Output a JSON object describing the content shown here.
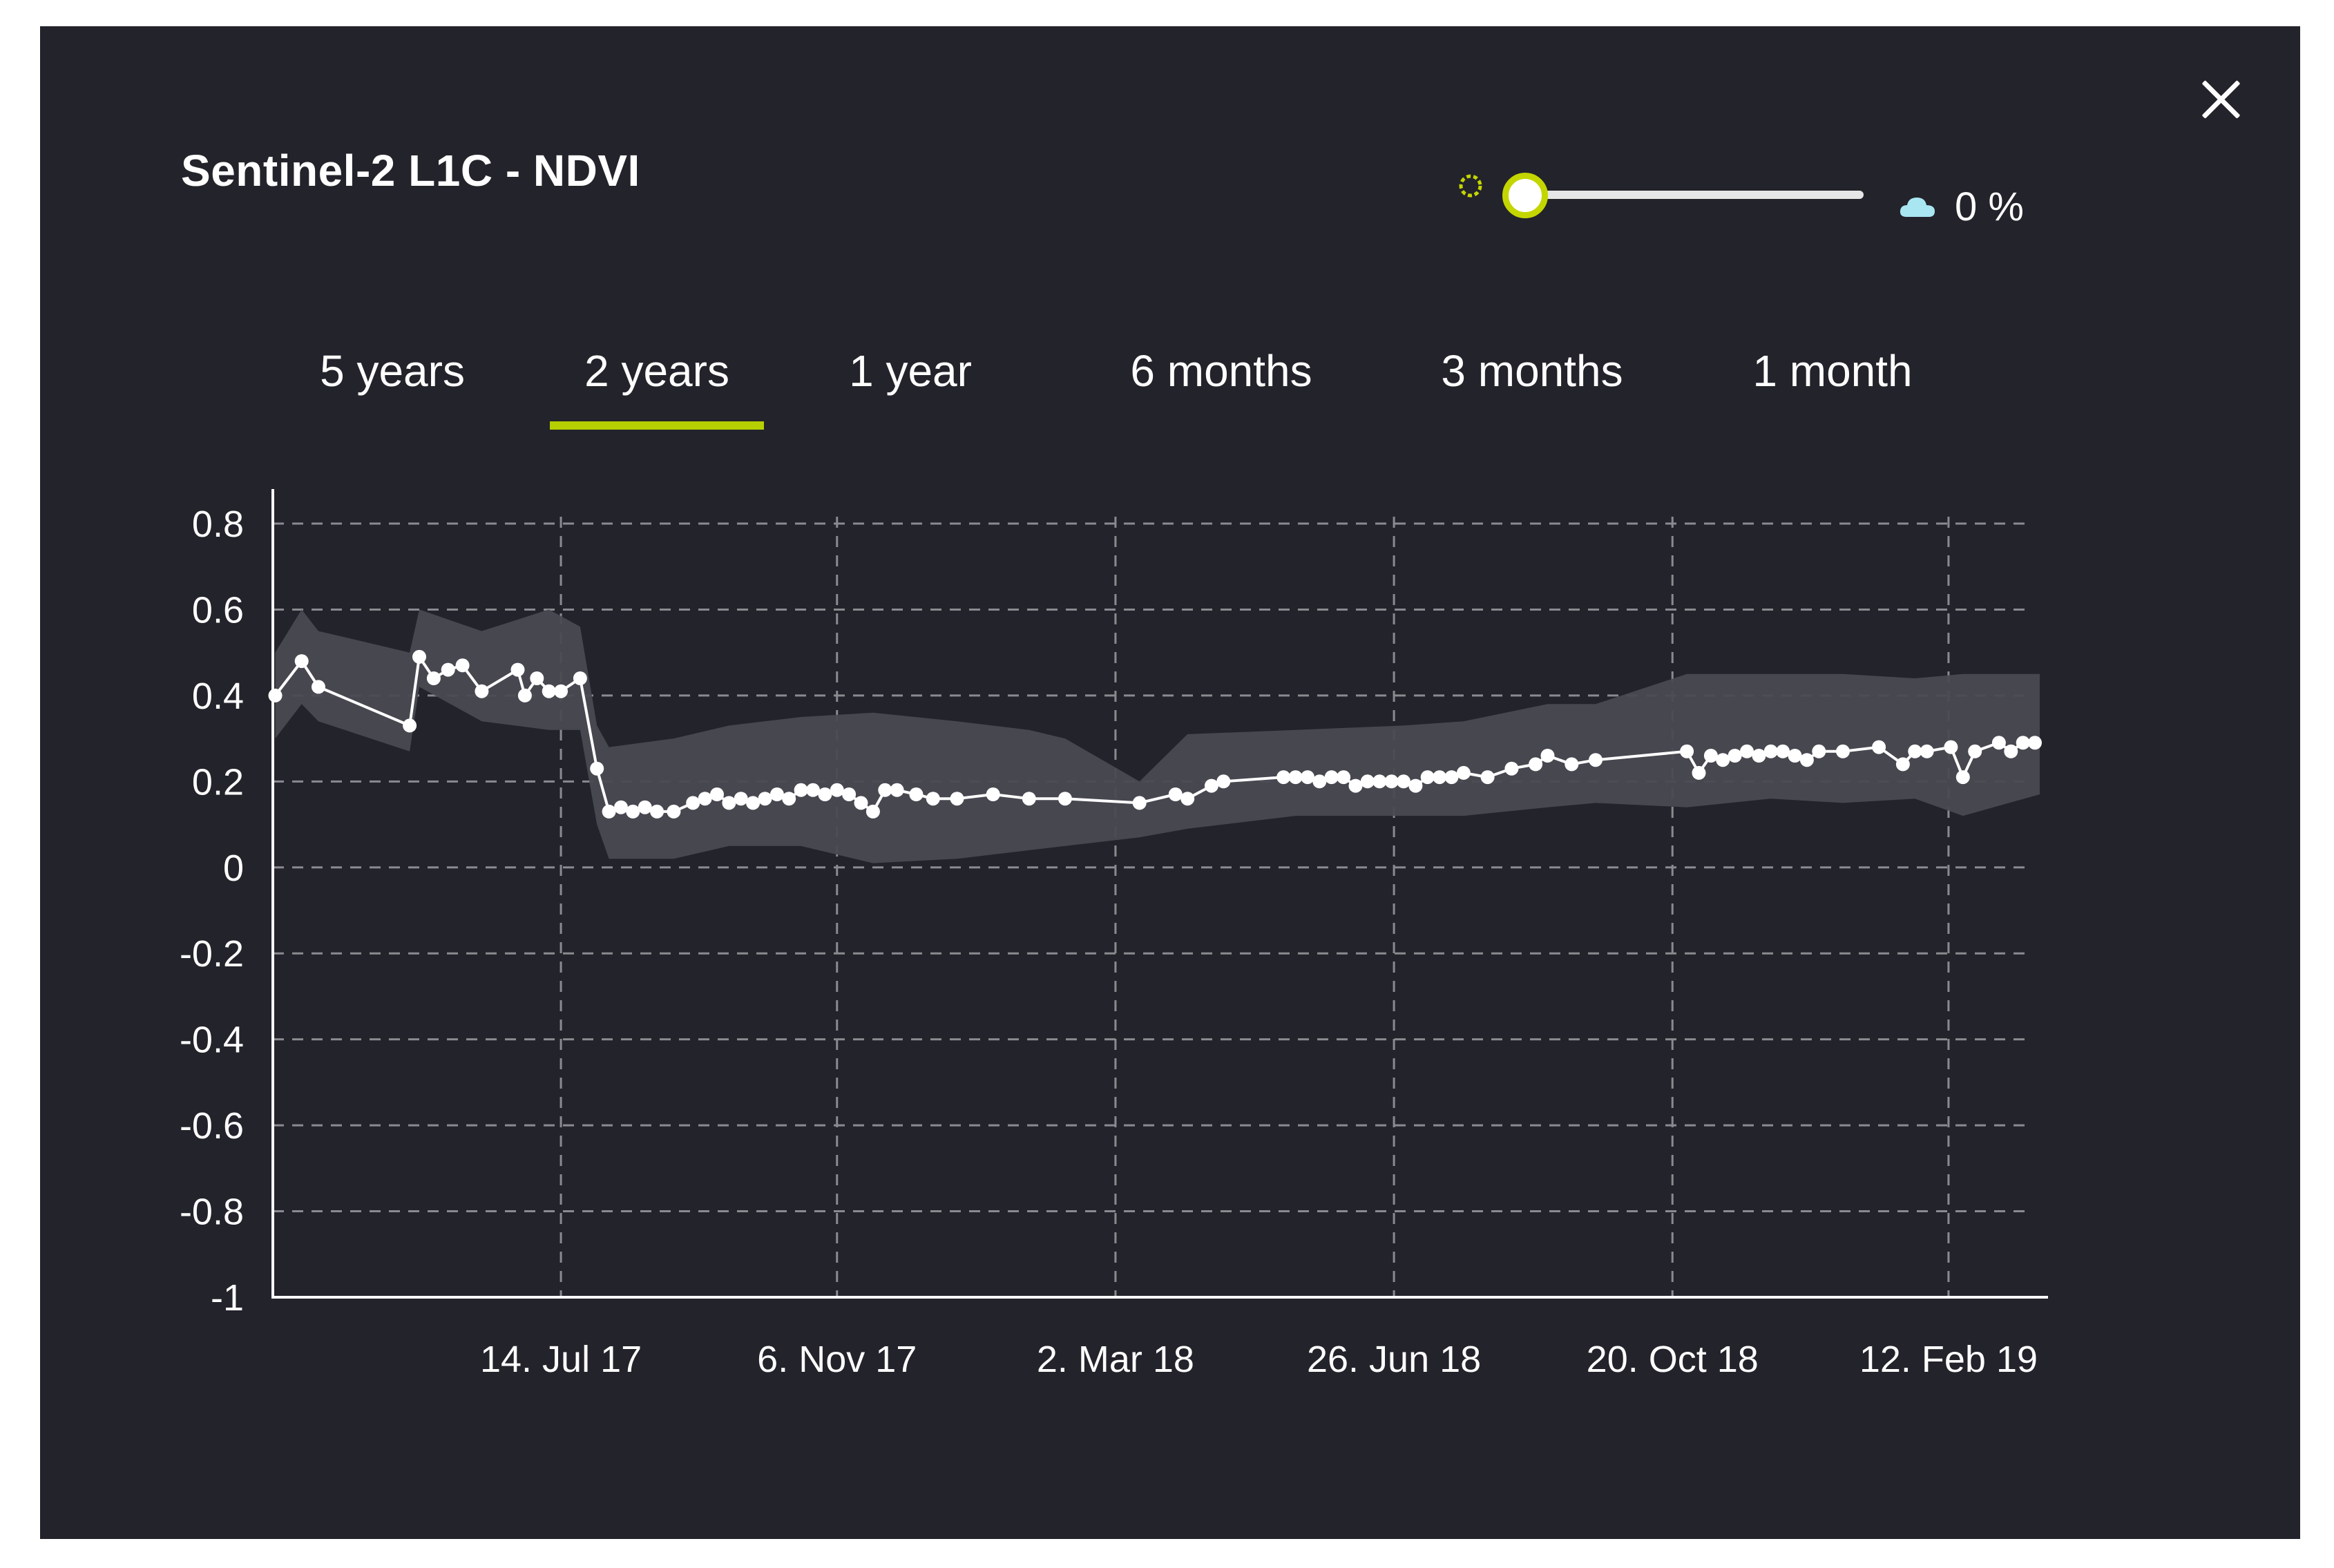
{
  "panel": {
    "title": "Sentinel-2 L1C - NDVI",
    "close_icon": "close-icon",
    "cloud_slider": {
      "value_fraction": 0.0,
      "value_label": "0 %",
      "sun_icon": "sun-icon",
      "cloud_icon": "cloud-icon"
    },
    "tabs": [
      {
        "label": "5 years",
        "active": false
      },
      {
        "label": "2 years",
        "active": true
      },
      {
        "label": "1 year",
        "active": false
      },
      {
        "label": "6 months",
        "active": false
      },
      {
        "label": "3 months",
        "active": false
      },
      {
        "label": "1 month",
        "active": false
      }
    ],
    "colors": {
      "background": "#23232b",
      "accent": "#b6cf00",
      "band": "#4a4a52",
      "line": "#ffffff",
      "cloud": "#a8e6f2"
    }
  },
  "chart_data": {
    "type": "line",
    "title": "",
    "xlabel": "",
    "ylabel": "",
    "ylim": [
      -1,
      0.8
    ],
    "yticks": [
      "0.8",
      "0.6",
      "0.4",
      "0.2",
      "0",
      "-0.2",
      "-0.4",
      "-0.6",
      "-0.8",
      "-1"
    ],
    "xticks": [
      "14. Jul 17",
      "6. Nov 17",
      "2. Mar 18",
      "26. Jun 18",
      "20. Oct 18",
      "12. Feb 19"
    ],
    "grid": true,
    "legend": "none",
    "xrange": [
      "2017-03-16",
      "2019-03-22"
    ],
    "series": [
      {
        "points": [
          [
            "2017-03-17",
            0.4
          ],
          [
            "2017-03-28",
            0.48
          ],
          [
            "2017-04-04",
            0.42
          ],
          [
            "2017-05-12",
            0.33
          ],
          [
            "2017-05-16",
            0.49
          ],
          [
            "2017-05-22",
            0.44
          ],
          [
            "2017-05-28",
            0.46
          ],
          [
            "2017-06-03",
            0.47
          ],
          [
            "2017-06-11",
            0.41
          ],
          [
            "2017-06-26",
            0.46
          ],
          [
            "2017-06-29",
            0.4
          ],
          [
            "2017-07-04",
            0.44
          ],
          [
            "2017-07-09",
            0.41
          ],
          [
            "2017-07-14",
            0.41
          ],
          [
            "2017-07-22",
            0.44
          ],
          [
            "2017-07-29",
            0.23
          ],
          [
            "2017-08-03",
            0.13
          ],
          [
            "2017-08-08",
            0.14
          ],
          [
            "2017-08-13",
            0.13
          ],
          [
            "2017-08-18",
            0.14
          ],
          [
            "2017-08-23",
            0.13
          ],
          [
            "2017-08-30",
            0.13
          ],
          [
            "2017-09-07",
            0.15
          ],
          [
            "2017-09-12",
            0.16
          ],
          [
            "2017-09-17",
            0.17
          ],
          [
            "2017-09-22",
            0.15
          ],
          [
            "2017-09-27",
            0.16
          ],
          [
            "2017-10-02",
            0.15
          ],
          [
            "2017-10-07",
            0.16
          ],
          [
            "2017-10-12",
            0.17
          ],
          [
            "2017-10-17",
            0.16
          ],
          [
            "2017-10-22",
            0.18
          ],
          [
            "2017-10-27",
            0.18
          ],
          [
            "2017-11-01",
            0.17
          ],
          [
            "2017-11-06",
            0.18
          ],
          [
            "2017-11-11",
            0.17
          ],
          [
            "2017-11-16",
            0.15
          ],
          [
            "2017-11-21",
            0.13
          ],
          [
            "2017-11-26",
            0.18
          ],
          [
            "2017-12-01",
            0.18
          ],
          [
            "2017-12-09",
            0.17
          ],
          [
            "2017-12-16",
            0.16
          ],
          [
            "2017-12-26",
            0.16
          ],
          [
            "2018-01-10",
            0.17
          ],
          [
            "2018-01-25",
            0.16
          ],
          [
            "2018-02-09",
            0.16
          ],
          [
            "2018-03-12",
            0.15
          ],
          [
            "2018-03-27",
            0.17
          ],
          [
            "2018-04-01",
            0.16
          ],
          [
            "2018-04-11",
            0.19
          ],
          [
            "2018-04-16",
            0.2
          ],
          [
            "2018-05-11",
            0.21
          ],
          [
            "2018-05-16",
            0.21
          ],
          [
            "2018-05-21",
            0.21
          ],
          [
            "2018-05-26",
            0.2
          ],
          [
            "2018-05-31",
            0.21
          ],
          [
            "2018-06-05",
            0.21
          ],
          [
            "2018-06-10",
            0.19
          ],
          [
            "2018-06-15",
            0.2
          ],
          [
            "2018-06-20",
            0.2
          ],
          [
            "2018-06-25",
            0.2
          ],
          [
            "2018-06-30",
            0.2
          ],
          [
            "2018-07-05",
            0.19
          ],
          [
            "2018-07-10",
            0.21
          ],
          [
            "2018-07-15",
            0.21
          ],
          [
            "2018-07-20",
            0.21
          ],
          [
            "2018-07-25",
            0.22
          ],
          [
            "2018-08-04",
            0.21
          ],
          [
            "2018-08-14",
            0.23
          ],
          [
            "2018-08-24",
            0.24
          ],
          [
            "2018-08-29",
            0.26
          ],
          [
            "2018-09-08",
            0.24
          ],
          [
            "2018-09-18",
            0.25
          ],
          [
            "2018-10-26",
            0.27
          ],
          [
            "2018-10-31",
            0.22
          ],
          [
            "2018-11-05",
            0.26
          ],
          [
            "2018-11-10",
            0.25
          ],
          [
            "2018-11-15",
            0.26
          ],
          [
            "2018-11-20",
            0.27
          ],
          [
            "2018-11-25",
            0.26
          ],
          [
            "2018-11-30",
            0.27
          ],
          [
            "2018-12-05",
            0.27
          ],
          [
            "2018-12-10",
            0.26
          ],
          [
            "2018-12-15",
            0.25
          ],
          [
            "2018-12-20",
            0.27
          ],
          [
            "2018-12-30",
            0.27
          ],
          [
            "2019-01-14",
            0.28
          ],
          [
            "2019-01-24",
            0.24
          ],
          [
            "2019-01-29",
            0.27
          ],
          [
            "2019-02-03",
            0.27
          ],
          [
            "2019-02-13",
            0.28
          ],
          [
            "2019-02-18",
            0.21
          ],
          [
            "2019-02-23",
            0.27
          ],
          [
            "2019-03-05",
            0.29
          ],
          [
            "2019-03-10",
            0.27
          ],
          [
            "2019-03-15",
            0.29
          ],
          [
            "2019-03-20",
            0.29
          ]
        ]
      }
    ],
    "band": [
      [
        "2017-03-17",
        0.3,
        0.5
      ],
      [
        "2017-03-28",
        0.38,
        0.6
      ],
      [
        "2017-04-04",
        0.34,
        0.55
      ],
      [
        "2017-05-12",
        0.27,
        0.5
      ],
      [
        "2017-05-16",
        0.42,
        0.6
      ],
      [
        "2017-06-11",
        0.34,
        0.55
      ],
      [
        "2017-07-09",
        0.32,
        0.6
      ],
      [
        "2017-07-22",
        0.32,
        0.56
      ],
      [
        "2017-07-29",
        0.1,
        0.33
      ],
      [
        "2017-08-03",
        0.02,
        0.28
      ],
      [
        "2017-08-30",
        0.02,
        0.3
      ],
      [
        "2017-09-22",
        0.05,
        0.33
      ],
      [
        "2017-10-22",
        0.05,
        0.35
      ],
      [
        "2017-11-21",
        0.01,
        0.36
      ],
      [
        "2017-12-26",
        0.02,
        0.34
      ],
      [
        "2018-01-25",
        0.04,
        0.32
      ],
      [
        "2018-02-09",
        0.05,
        0.3
      ],
      [
        "2018-03-12",
        0.07,
        0.2
      ],
      [
        "2018-04-01",
        0.09,
        0.31
      ],
      [
        "2018-05-16",
        0.12,
        0.32
      ],
      [
        "2018-06-30",
        0.12,
        0.33
      ],
      [
        "2018-07-25",
        0.12,
        0.34
      ],
      [
        "2018-08-29",
        0.14,
        0.38
      ],
      [
        "2018-09-18",
        0.15,
        0.38
      ],
      [
        "2018-10-26",
        0.14,
        0.45
      ],
      [
        "2018-11-30",
        0.16,
        0.45
      ],
      [
        "2018-12-30",
        0.15,
        0.45
      ],
      [
        "2019-01-29",
        0.16,
        0.44
      ],
      [
        "2019-02-18",
        0.12,
        0.45
      ],
      [
        "2019-03-22",
        0.17,
        0.45
      ]
    ]
  }
}
